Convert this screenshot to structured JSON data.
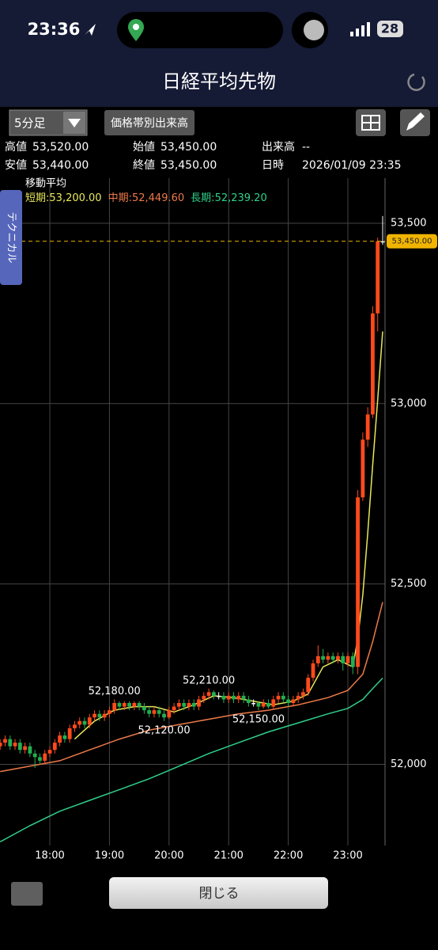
{
  "ui": {
    "status_time": "23:36",
    "battery": "28",
    "title": "日経平均先物",
    "interval": "5分足",
    "volume_button": "価格帯別出来高",
    "technical_tab": "テクニカル",
    "close_button": "閉じる",
    "info": [
      {
        "label": "高値",
        "value": "53,520.00"
      },
      {
        "label": "始値",
        "value": "53,450.00"
      },
      {
        "label": "出来高",
        "value": "--"
      },
      {
        "label": "安値",
        "value": "53,440.00"
      },
      {
        "label": "終値",
        "value": "53,450.00"
      },
      {
        "label": "日時",
        "value": "2026/01/09 23:35"
      }
    ]
  },
  "chart_data": {
    "type": "candlestick",
    "up_color": "#ff4a1c",
    "down_color": "#22b04f",
    "flat_color": "#ffffff",
    "legend_title": "移動平均",
    "legend_separator": ":",
    "x": [
      "17:10",
      "17:15",
      "17:20",
      "17:25",
      "17:30",
      "17:35",
      "17:40",
      "17:45",
      "17:50",
      "17:55",
      "18:00",
      "18:05",
      "18:10",
      "18:15",
      "18:20",
      "18:25",
      "18:30",
      "18:35",
      "18:40",
      "18:45",
      "18:50",
      "18:55",
      "19:00",
      "19:05",
      "19:10",
      "19:15",
      "19:20",
      "19:25",
      "19:30",
      "19:35",
      "19:40",
      "19:45",
      "19:50",
      "19:55",
      "20:00",
      "20:05",
      "20:10",
      "20:15",
      "20:20",
      "20:25",
      "20:30",
      "20:35",
      "20:40",
      "20:45",
      "20:50",
      "20:55",
      "21:00",
      "21:05",
      "21:10",
      "21:15",
      "21:20",
      "21:25",
      "21:30",
      "21:35",
      "21:40",
      "21:45",
      "21:50",
      "21:55",
      "22:00",
      "22:05",
      "22:10",
      "22:15",
      "22:20",
      "22:25",
      "22:30",
      "22:35",
      "22:40",
      "22:45",
      "22:50",
      "22:55",
      "23:00",
      "23:05",
      "23:10",
      "23:15",
      "23:20",
      "23:25",
      "23:30",
      "23:35"
    ],
    "ohlc": [
      [
        52050,
        52070,
        52040,
        52060
      ],
      [
        52060,
        52080,
        52050,
        52070
      ],
      [
        52070,
        52080,
        52040,
        52050
      ],
      [
        52050,
        52070,
        52040,
        52060
      ],
      [
        52060,
        52070,
        52030,
        52040
      ],
      [
        52040,
        52060,
        52030,
        52050
      ],
      [
        52050,
        52060,
        52020,
        52030
      ],
      [
        52030,
        52040,
        51990,
        52020
      ],
      [
        52020,
        52030,
        52000,
        52010
      ],
      [
        52010,
        52040,
        52000,
        52030
      ],
      [
        52030,
        52050,
        52020,
        52040
      ],
      [
        52040,
        52070,
        52030,
        52060
      ],
      [
        52060,
        52090,
        52050,
        52080
      ],
      [
        52080,
        52090,
        52060,
        52070
      ],
      [
        52070,
        52110,
        52060,
        52100
      ],
      [
        52100,
        52120,
        52090,
        52110
      ],
      [
        52110,
        52130,
        52100,
        52120
      ],
      [
        52120,
        52130,
        52100,
        52110
      ],
      [
        52110,
        52140,
        52100,
        52130
      ],
      [
        52130,
        52150,
        52120,
        52140
      ],
      [
        52140,
        52150,
        52120,
        52130
      ],
      [
        52130,
        52150,
        52120,
        52140
      ],
      [
        52140,
        52160,
        52130,
        52150
      ],
      [
        52150,
        52180,
        52140,
        52170
      ],
      [
        52170,
        52175,
        52150,
        52160
      ],
      [
        52160,
        52175,
        52150,
        52170
      ],
      [
        52170,
        52175,
        52150,
        52160
      ],
      [
        52160,
        52175,
        52150,
        52170
      ],
      [
        52170,
        52175,
        52150,
        52160
      ],
      [
        52160,
        52170,
        52140,
        52150
      ],
      [
        52150,
        52160,
        52130,
        52140
      ],
      [
        52140,
        52160,
        52130,
        52150
      ],
      [
        52150,
        52160,
        52130,
        52140
      ],
      [
        52140,
        52150,
        52120,
        52130
      ],
      [
        52130,
        52160,
        52125,
        52150
      ],
      [
        52150,
        52170,
        52140,
        52160
      ],
      [
        52160,
        52180,
        52150,
        52170
      ],
      [
        52170,
        52180,
        52150,
        52160
      ],
      [
        52160,
        52180,
        52150,
        52170
      ],
      [
        52170,
        52180,
        52150,
        52160
      ],
      [
        52160,
        52190,
        52150,
        52180
      ],
      [
        52180,
        52200,
        52170,
        52190
      ],
      [
        52190,
        52210,
        52180,
        52200
      ],
      [
        52200,
        52205,
        52180,
        52190
      ],
      [
        52190,
        52200,
        52180,
        52190
      ],
      [
        52190,
        52200,
        52170,
        52180
      ],
      [
        52180,
        52200,
        52170,
        52190
      ],
      [
        52190,
        52200,
        52170,
        52180
      ],
      [
        52180,
        52200,
        52170,
        52190
      ],
      [
        52190,
        52200,
        52170,
        52180
      ],
      [
        52180,
        52190,
        52160,
        52170
      ],
      [
        52170,
        52180,
        52160,
        52170
      ],
      [
        52170,
        52175,
        52150,
        52160
      ],
      [
        52160,
        52180,
        52155,
        52170
      ],
      [
        52170,
        52180,
        52155,
        52160
      ],
      [
        52160,
        52190,
        52155,
        52180
      ],
      [
        52180,
        52200,
        52170,
        52190
      ],
      [
        52190,
        52200,
        52170,
        52180
      ],
      [
        52180,
        52190,
        52160,
        52170
      ],
      [
        52170,
        52190,
        52160,
        52180
      ],
      [
        52180,
        52200,
        52170,
        52190
      ],
      [
        52190,
        52210,
        52180,
        52200
      ],
      [
        52200,
        52250,
        52190,
        52240
      ],
      [
        52240,
        52290,
        52230,
        52280
      ],
      [
        52280,
        52330,
        52270,
        52300
      ],
      [
        52300,
        52320,
        52280,
        52290
      ],
      [
        52290,
        52310,
        52280,
        52300
      ],
      [
        52300,
        52310,
        52280,
        52290
      ],
      [
        52290,
        52310,
        52280,
        52300
      ],
      [
        52300,
        52310,
        52260,
        52280
      ],
      [
        52280,
        52310,
        52270,
        52300
      ],
      [
        52300,
        52310,
        52250,
        52270
      ],
      [
        52270,
        52760,
        52250,
        52740
      ],
      [
        52740,
        52920,
        52730,
        52900
      ],
      [
        52900,
        52990,
        52880,
        52970
      ],
      [
        52970,
        53270,
        52960,
        53250
      ],
      [
        53250,
        53460,
        53200,
        53450
      ],
      [
        53450,
        53520,
        53440,
        53450
      ]
    ],
    "series": [
      {
        "name": "短期",
        "legend_value": "53,200.00",
        "color": "#e8e85a",
        "x": [
          "18:25",
          "18:45",
          "19:05",
          "19:25",
          "19:45",
          "20:05",
          "20:25",
          "20:45",
          "21:05",
          "21:25",
          "21:45",
          "22:05",
          "22:20",
          "22:35",
          "22:50",
          "23:05",
          "23:10",
          "23:15",
          "23:20",
          "23:25",
          "23:30",
          "23:35"
        ],
        "values": [
          52070,
          52120,
          52150,
          52160,
          52160,
          52145,
          52165,
          52190,
          52185,
          52175,
          52165,
          52175,
          52195,
          52270,
          52290,
          52270,
          52350,
          52470,
          52640,
          52830,
          53010,
          53200
        ]
      },
      {
        "name": "中期",
        "legend_value": "52,449.60",
        "color": "#ee7a4a",
        "x": [
          "17:10",
          "17:40",
          "18:10",
          "18:40",
          "19:10",
          "19:40",
          "20:10",
          "20:40",
          "21:10",
          "21:40",
          "22:10",
          "22:40",
          "23:00",
          "23:15",
          "23:25",
          "23:35"
        ],
        "values": [
          51980,
          51995,
          52010,
          52040,
          52070,
          52095,
          52110,
          52125,
          52140,
          52150,
          52165,
          52185,
          52205,
          52250,
          52340,
          52449.6
        ]
      },
      {
        "name": "長期",
        "legend_value": "52,239.20",
        "color": "#2fd08a",
        "x": [
          "17:10",
          "17:40",
          "18:10",
          "18:40",
          "19:10",
          "19:40",
          "20:10",
          "20:40",
          "21:10",
          "21:40",
          "22:10",
          "22:40",
          "23:00",
          "23:15",
          "23:25",
          "23:35"
        ],
        "values": [
          51785,
          51830,
          51870,
          51900,
          51930,
          51960,
          51995,
          52030,
          52060,
          52090,
          52115,
          52140,
          52155,
          52180,
          52210,
          52239.2
        ]
      }
    ],
    "annotations": [
      {
        "x": "19:05",
        "value": 52180,
        "label": "52,180.00"
      },
      {
        "x": "19:55",
        "value": 52120,
        "label": "52,120.00"
      },
      {
        "x": "20:40",
        "value": 52210,
        "label": "52,210.00"
      },
      {
        "x": "21:30",
        "value": 52150,
        "label": "52,150.00"
      }
    ],
    "last_price": {
      "value": 53450,
      "label": "53,450.00"
    },
    "ylim": [
      51775,
      53625
    ],
    "yticks": [
      {
        "value": 52000,
        "label": "52,000"
      },
      {
        "value": 52500,
        "label": "52,500"
      },
      {
        "value": 53000,
        "label": "53,000"
      },
      {
        "value": 53500,
        "label": "53,500"
      }
    ],
    "xticks": [
      "18:00",
      "19:00",
      "20:00",
      "21:00",
      "22:00",
      "23:00"
    ],
    "grid": true
  }
}
